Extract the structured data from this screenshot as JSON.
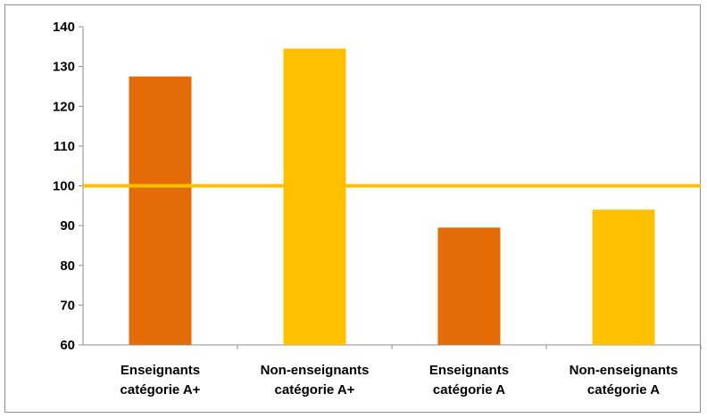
{
  "chart_data": {
    "type": "bar",
    "categories": [
      [
        "Enseignants",
        "catégorie A+"
      ],
      [
        "Non-enseignants",
        "catégorie A+"
      ],
      [
        "Enseignants",
        "catégorie A"
      ],
      [
        "Non-enseignants",
        "catégorie A"
      ]
    ],
    "values": [
      127.5,
      134.5,
      89.5,
      94
    ],
    "bar_colors": [
      "#E36C09",
      "#FFC000",
      "#E36C09",
      "#FFC000"
    ],
    "ylim": [
      60,
      140
    ],
    "yticks": [
      60,
      70,
      80,
      90,
      100,
      110,
      120,
      130,
      140
    ],
    "reference_line": {
      "value": 100,
      "color": "#FFC000"
    },
    "grid": false,
    "title": "",
    "xlabel": "",
    "ylabel": ""
  }
}
